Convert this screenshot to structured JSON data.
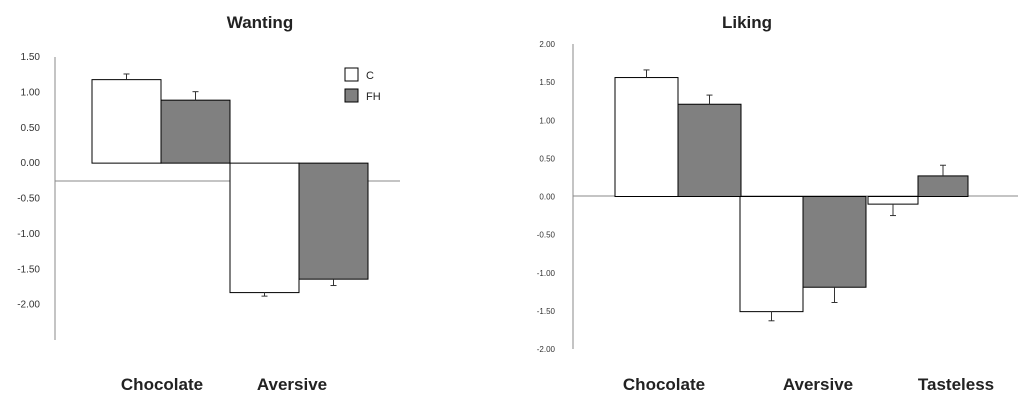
{
  "chart_data": [
    {
      "type": "bar",
      "title": "Wanting",
      "categories": [
        "Chocolate",
        "Aversive"
      ],
      "series": [
        {
          "name": "C",
          "color": "#ffffff",
          "values": [
            1.18,
            -1.83
          ],
          "errors": [
            0.08,
            0.05
          ]
        },
        {
          "name": "FH",
          "color": "#808080",
          "values": [
            0.89,
            -1.64
          ],
          "errors": [
            0.12,
            0.09
          ]
        }
      ],
      "ylim": [
        -2.5,
        1.5
      ],
      "yticks": [
        "1.50",
        "1.00",
        "0.50",
        "0.00",
        "-0.50",
        "-1.00",
        "-1.50",
        "-2.00"
      ],
      "legend": "top-right"
    },
    {
      "type": "bar",
      "title": "Liking",
      "categories": [
        "Chocolate",
        "Aversive",
        "Tasteless"
      ],
      "series": [
        {
          "name": "C",
          "color": "#ffffff",
          "values": [
            1.56,
            -1.51,
            -0.1
          ],
          "errors": [
            0.1,
            0.12,
            0.15
          ]
        },
        {
          "name": "FH",
          "color": "#808080",
          "values": [
            1.21,
            -1.19,
            0.27
          ],
          "errors": [
            0.12,
            0.2,
            0.14
          ]
        }
      ],
      "ylim": [
        -2.0,
        2.0
      ],
      "yticks": [
        "2.00",
        "1.50",
        "1.00",
        "0.50",
        "0.00",
        "-0.50",
        "-1.00",
        "-1.50",
        "-2.00"
      ]
    }
  ]
}
